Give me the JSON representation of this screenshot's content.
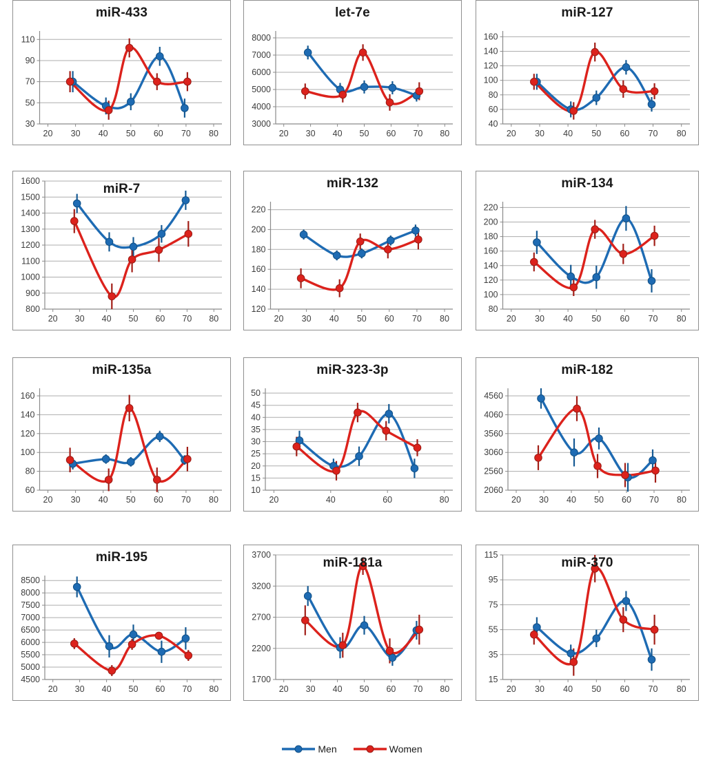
{
  "legend": {
    "items": [
      {
        "label": "Men",
        "color": "#1e6bb3",
        "err_color": "#155a94",
        "edge_color": "#0f4f86"
      },
      {
        "label": "Women",
        "color": "#dc221c",
        "err_color": "#a21f18",
        "edge_color": "#991b15"
      }
    ],
    "position": "bottom-center"
  },
  "style_colors": {
    "grid": "#adadad",
    "axis": "#8a8a8a",
    "tick_text": "#3d3d3d",
    "title_text": "#1a1a1a",
    "panel_border": "#8f8f8f"
  },
  "chart_data": [
    {
      "type": "line",
      "title": "miR-433",
      "title_layout": "above",
      "xlabel": "",
      "ylabel": "",
      "grid": true,
      "yticks": [
        30,
        50,
        70,
        90,
        110
      ],
      "xticks": [
        20,
        30,
        40,
        50,
        60,
        70,
        80
      ],
      "series": [
        {
          "name": "Men",
          "x": [
            29,
            41,
            50,
            60.5,
            69.5
          ],
          "y": [
            70,
            47,
            51,
            94,
            45
          ],
          "err": [
            10,
            8,
            8,
            9,
            9
          ]
        },
        {
          "name": "Women",
          "x": [
            28,
            42,
            49.5,
            59.5,
            70.5
          ],
          "y": [
            70,
            43,
            102,
            70,
            70
          ],
          "err": [
            10,
            9,
            9,
            8,
            9
          ]
        }
      ]
    },
    {
      "type": "line",
      "title": "let-7e",
      "title_layout": "above",
      "xlabel": "",
      "ylabel": "",
      "grid": true,
      "yticks": [
        3000,
        4000,
        5000,
        6000,
        7000,
        8000
      ],
      "xticks": [
        20,
        30,
        40,
        50,
        60,
        70,
        80
      ],
      "series": [
        {
          "name": "Men",
          "x": [
            29,
            41,
            50,
            60.5,
            69.5
          ],
          "y": [
            7150,
            5000,
            5150,
            5100,
            4650
          ],
          "err": [
            400,
            380,
            380,
            380,
            350
          ]
        },
        {
          "name": "Women",
          "x": [
            28,
            42,
            49.5,
            59.5,
            70.5
          ],
          "y": [
            4900,
            4700,
            7150,
            4250,
            4900
          ],
          "err": [
            450,
            450,
            480,
            480,
            520
          ]
        }
      ]
    },
    {
      "type": "line",
      "title": "miR-127",
      "title_layout": "above",
      "xlabel": "",
      "ylabel": "",
      "grid": true,
      "yticks": [
        40,
        60,
        80,
        100,
        120,
        140,
        160
      ],
      "xticks": [
        20,
        30,
        40,
        50,
        60,
        70,
        80
      ],
      "series": [
        {
          "name": "Men",
          "x": [
            29,
            41,
            50,
            60.5,
            69.5
          ],
          "y": [
            98,
            60,
            76,
            118,
            67
          ],
          "err": [
            11,
            11,
            10,
            10,
            10
          ]
        },
        {
          "name": "Women",
          "x": [
            28,
            42,
            49.5,
            59.5,
            70.5
          ],
          "y": [
            98,
            58,
            139,
            88,
            85
          ],
          "err": [
            11,
            12,
            13,
            12,
            11
          ]
        }
      ]
    },
    {
      "type": "line",
      "title": "miR-7",
      "title_layout": "inside",
      "xlabel": "",
      "ylabel": "",
      "grid": true,
      "yticks": [
        800,
        900,
        1000,
        1100,
        1200,
        1300,
        1400,
        1500,
        1600
      ],
      "xticks": [
        20,
        30,
        40,
        50,
        60,
        70,
        80
      ],
      "series": [
        {
          "name": "Men",
          "x": [
            29,
            41,
            50,
            60.5,
            69.5
          ],
          "y": [
            1460,
            1220,
            1190,
            1270,
            1480
          ],
          "err": [
            60,
            60,
            60,
            55,
            60
          ]
        },
        {
          "name": "Women",
          "x": [
            28,
            42,
            49.5,
            59.5,
            70.5
          ],
          "y": [
            1350,
            880,
            1110,
            1170,
            1270
          ],
          "err": [
            75,
            80,
            80,
            75,
            80
          ]
        }
      ]
    },
    {
      "type": "line",
      "title": "miR-132",
      "title_layout": "above",
      "xlabel": "",
      "ylabel": "",
      "grid": true,
      "yticks": [
        120,
        140,
        160,
        180,
        200,
        220
      ],
      "xticks": [
        20,
        30,
        40,
        50,
        60,
        70,
        80
      ],
      "series": [
        {
          "name": "Men",
          "x": [
            29,
            41,
            50,
            60.5,
            69.5
          ],
          "y": [
            195,
            174,
            176,
            189,
            199
          ],
          "err": [
            5,
            5,
            5,
            5,
            6
          ]
        },
        {
          "name": "Women",
          "x": [
            28,
            42,
            49.5,
            59.5,
            70.5
          ],
          "y": [
            151,
            141,
            188,
            180,
            190
          ],
          "err": [
            10,
            9,
            8,
            9,
            10
          ]
        }
      ]
    },
    {
      "type": "line",
      "title": "miR-134",
      "title_layout": "above",
      "xlabel": "",
      "ylabel": "",
      "grid": true,
      "yticks": [
        80,
        100,
        120,
        140,
        160,
        180,
        200,
        220
      ],
      "xticks": [
        20,
        30,
        40,
        50,
        60,
        70,
        80
      ],
      "series": [
        {
          "name": "Men",
          "x": [
            29,
            41,
            50,
            60.5,
            69.5
          ],
          "y": [
            172,
            125,
            124,
            205,
            119
          ],
          "err": [
            16,
            16,
            16,
            17,
            16
          ]
        },
        {
          "name": "Women",
          "x": [
            28,
            42,
            49.5,
            59.5,
            70.5
          ],
          "y": [
            145,
            110,
            190,
            156,
            181
          ],
          "err": [
            13,
            12,
            13,
            14,
            14
          ]
        }
      ]
    },
    {
      "type": "line",
      "title": "miR-135a",
      "title_layout": "above",
      "xlabel": "",
      "ylabel": "",
      "grid": true,
      "yticks": [
        60,
        80,
        100,
        120,
        140,
        160
      ],
      "xticks": [
        20,
        30,
        40,
        50,
        60,
        70,
        80
      ],
      "series": [
        {
          "name": "Men",
          "x": [
            29,
            41,
            50,
            60.5,
            69.5
          ],
          "y": [
            88,
            93,
            90,
            117,
            92
          ],
          "err": [
            6,
            5,
            5,
            6,
            5
          ]
        },
        {
          "name": "Women",
          "x": [
            28,
            42,
            49.5,
            59.5,
            70.5
          ],
          "y": [
            92,
            71,
            147,
            71,
            93
          ],
          "err": [
            13,
            12,
            14,
            13,
            13
          ]
        }
      ]
    },
    {
      "type": "line",
      "title": "miR-323-3p",
      "title_layout": "above",
      "xlabel": "",
      "ylabel": "",
      "grid": true,
      "yticks": [
        10,
        15,
        20,
        25,
        30,
        35,
        40,
        45,
        50
      ],
      "xticks": [
        20,
        40,
        60,
        80
      ],
      "series": [
        {
          "name": "Men",
          "x": [
            29,
            41,
            50,
            60.5,
            69.5
          ],
          "y": [
            30.5,
            20,
            24,
            41.5,
            19
          ],
          "err": [
            4,
            3,
            4,
            4,
            4
          ]
        },
        {
          "name": "Women",
          "x": [
            28,
            42,
            49.5,
            59.5,
            70.5
          ],
          "y": [
            28,
            18,
            42,
            34.5,
            27.5
          ],
          "err": [
            4,
            4,
            4,
            4,
            3.5
          ]
        }
      ]
    },
    {
      "type": "line",
      "title": "miR-182",
      "title_layout": "above",
      "xlabel": "",
      "ylabel": "",
      "grid": true,
      "yticks": [
        2060,
        2560,
        3060,
        3560,
        4060,
        4560
      ],
      "xticks": [
        20,
        30,
        40,
        50,
        60,
        70,
        80
      ],
      "series": [
        {
          "name": "Men",
          "x": [
            29,
            41,
            50,
            60.5,
            69.5
          ],
          "y": [
            4490,
            3060,
            3430,
            2400,
            2850
          ],
          "err": [
            270,
            370,
            290,
            380,
            290
          ]
        },
        {
          "name": "Women",
          "x": [
            28,
            42,
            49.5,
            59.5,
            70.5
          ],
          "y": [
            2920,
            4220,
            2700,
            2460,
            2580
          ],
          "err": [
            330,
            330,
            320,
            320,
            320
          ]
        }
      ]
    },
    {
      "type": "line",
      "title": "miR-195",
      "title_layout": "above",
      "xlabel": "",
      "ylabel": "",
      "grid": true,
      "yticks": [
        4500,
        5000,
        5500,
        6000,
        6500,
        7000,
        7500,
        8000,
        8500
      ],
      "xticks": [
        20,
        30,
        40,
        50,
        60,
        70,
        80
      ],
      "series": [
        {
          "name": "Men",
          "x": [
            29,
            41,
            50,
            60.5,
            69.5
          ],
          "y": [
            8240,
            5840,
            6320,
            5620,
            6160
          ],
          "err": [
            420,
            450,
            400,
            450,
            450
          ]
        },
        {
          "name": "Women",
          "x": [
            28,
            42,
            49.5,
            59.5,
            70.5
          ],
          "y": [
            5950,
            4860,
            5920,
            6270,
            5470
          ],
          "err": [
            220,
            220,
            220,
            150,
            220
          ]
        }
      ]
    },
    {
      "type": "line",
      "title": "miR-181a",
      "title_layout": "inside",
      "xlabel": "",
      "ylabel": "",
      "grid": true,
      "yticks": [
        1700,
        2200,
        2700,
        3200,
        3700
      ],
      "xticks": [
        20,
        30,
        40,
        50,
        60,
        70,
        80
      ],
      "series": [
        {
          "name": "Men",
          "x": [
            29,
            41,
            50,
            60.5,
            69.5
          ],
          "y": [
            3040,
            2210,
            2570,
            2050,
            2490
          ],
          "err": [
            160,
            170,
            150,
            130,
            150
          ]
        },
        {
          "name": "Women",
          "x": [
            28,
            42,
            49.5,
            59.5,
            70.5
          ],
          "y": [
            2650,
            2250,
            3520,
            2160,
            2500
          ],
          "err": [
            240,
            200,
            140,
            200,
            240
          ]
        }
      ]
    },
    {
      "type": "line",
      "title": "miR-370",
      "title_layout": "inside",
      "xlabel": "",
      "ylabel": "",
      "grid": true,
      "yticks": [
        15,
        35,
        55,
        75,
        95,
        115
      ],
      "xticks": [
        20,
        30,
        40,
        50,
        60,
        70,
        80
      ],
      "series": [
        {
          "name": "Men",
          "x": [
            29,
            41,
            50,
            60.5,
            69.5
          ],
          "y": [
            57,
            36,
            48,
            78,
            31
          ],
          "err": [
            8,
            7,
            7,
            8,
            9
          ]
        },
        {
          "name": "Women",
          "x": [
            28,
            42,
            49.5,
            59.5,
            70.5
          ],
          "y": [
            51,
            29,
            104,
            63,
            55
          ],
          "err": [
            8,
            11,
            11,
            10,
            12
          ]
        }
      ]
    }
  ]
}
